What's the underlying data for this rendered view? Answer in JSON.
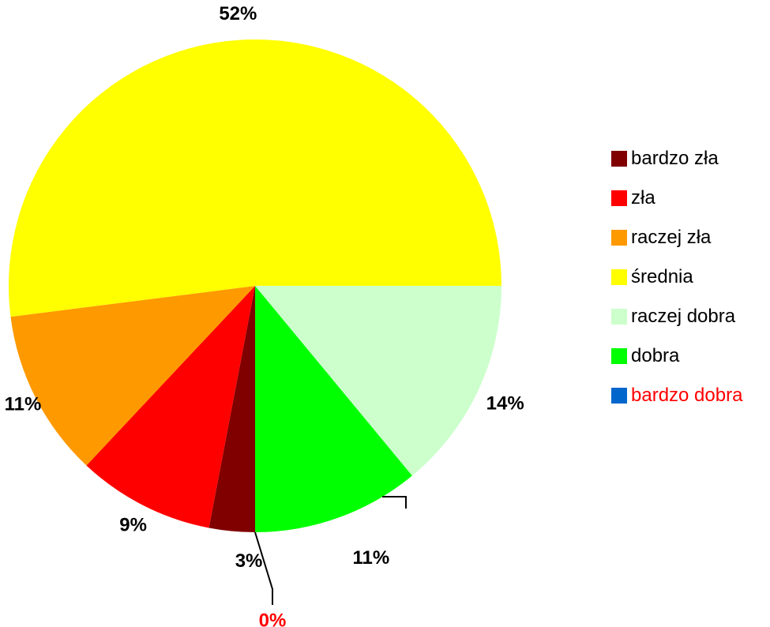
{
  "chart_data": {
    "type": "pie",
    "categories": [
      "bardzo zła",
      "zła",
      "raczej zła",
      "średnia",
      "raczej dobra",
      "dobra",
      "bardzo dobra"
    ],
    "values": [
      3,
      9,
      11,
      52,
      14,
      11,
      0
    ],
    "labels": [
      "3%",
      "9%",
      "11%",
      "52%",
      "14%",
      "11%",
      "0%"
    ],
    "colors": [
      "#800000",
      "#FF0000",
      "#FF9900",
      "#FFFF00",
      "#CCFFCC",
      "#00FF00",
      "#0066CC"
    ],
    "label_colors": [
      "#000000",
      "#000000",
      "#000000",
      "#000000",
      "#000000",
      "#000000",
      "#FF0000"
    ],
    "legend_text_colors": [
      "#000000",
      "#000000",
      "#000000",
      "#000000",
      "#000000",
      "#000000",
      "#FF0000"
    ],
    "legend_position": "right",
    "start": "6 o'clock, clockwise"
  }
}
